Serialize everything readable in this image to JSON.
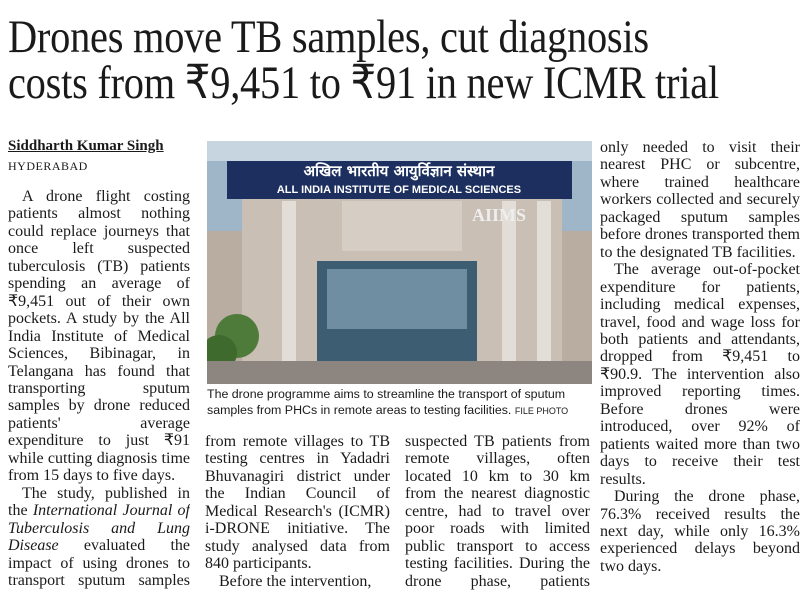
{
  "headline": {
    "lines": [
      "Drones move TB samples, cut diagnosis",
      "costs from ₹9,451 to ₹91 in new ICMR trial"
    ]
  },
  "byline": {
    "author": "Siddharth Kumar Singh",
    "dateline": "HYDERABAD"
  },
  "photo": {
    "sign_hindi": "अखिल भारतीय आयुर्विज्ञान संस्थान",
    "sign_english": "ALL INDIA INSTITUTE OF MEDICAL SCIENCES",
    "logo": "AIIMS"
  },
  "caption": {
    "text": "The drone programme aims to streamline the transport of sputum samples from PHCs in remote areas to testing facilities.",
    "credit": "FILE PHOTO"
  },
  "columns": [
    {
      "p1": "A drone flight costing patients almost nothing could replace journeys that once left suspected tuberculosis (TB) patients spending an average of ₹9,451 out of their own pockets. A study by the All India Institute of Medical Sciences, Bibinagar, in Telangana has found that transporting sputum samples by drone reduced patients' average expenditure to just ₹91 while cutting diagnosis time from 15 days to five days.",
      "p2_before": "The study, published in the",
      "p2_journal": "International Journal of Tuberculosis and Lung Disease",
      "p2_after": "evaluated the impact of using drones to transport sputum samples"
    },
    {
      "p1": "from remote villages to TB testing centres in Yadadri Bhuvanagiri district under the Indian Council of Medical Research's (ICMR) i-DRONE initiative. The study analysed data from 840 participants.",
      "p2": "Before the intervention,"
    },
    {
      "p1": "suspected TB patients from remote villages, often located 10 km to 30 km from the nearest diagnostic centre, had to travel over poor roads with limited public transport to access testing facilities. During the drone phase, patients"
    },
    {
      "p1": "only needed to visit their nearest PHC or subcentre, where trained healthcare workers collected and securely packaged sputum samples before drones transported them to the designated TB facilities.",
      "p2": "The average out-of-pocket expenditure for patients, including medical expenses, travel, food and wage loss for both patients and attendants, dropped from ₹9,451 to ₹90.9. The intervention also improved reporting times. Before drones were introduced, over 92% of patients waited more than two days to receive their test results.",
      "p3": "During the drone phase, 76.3% received results the next day, while only 16.3% experienced delays beyond two days."
    }
  ]
}
